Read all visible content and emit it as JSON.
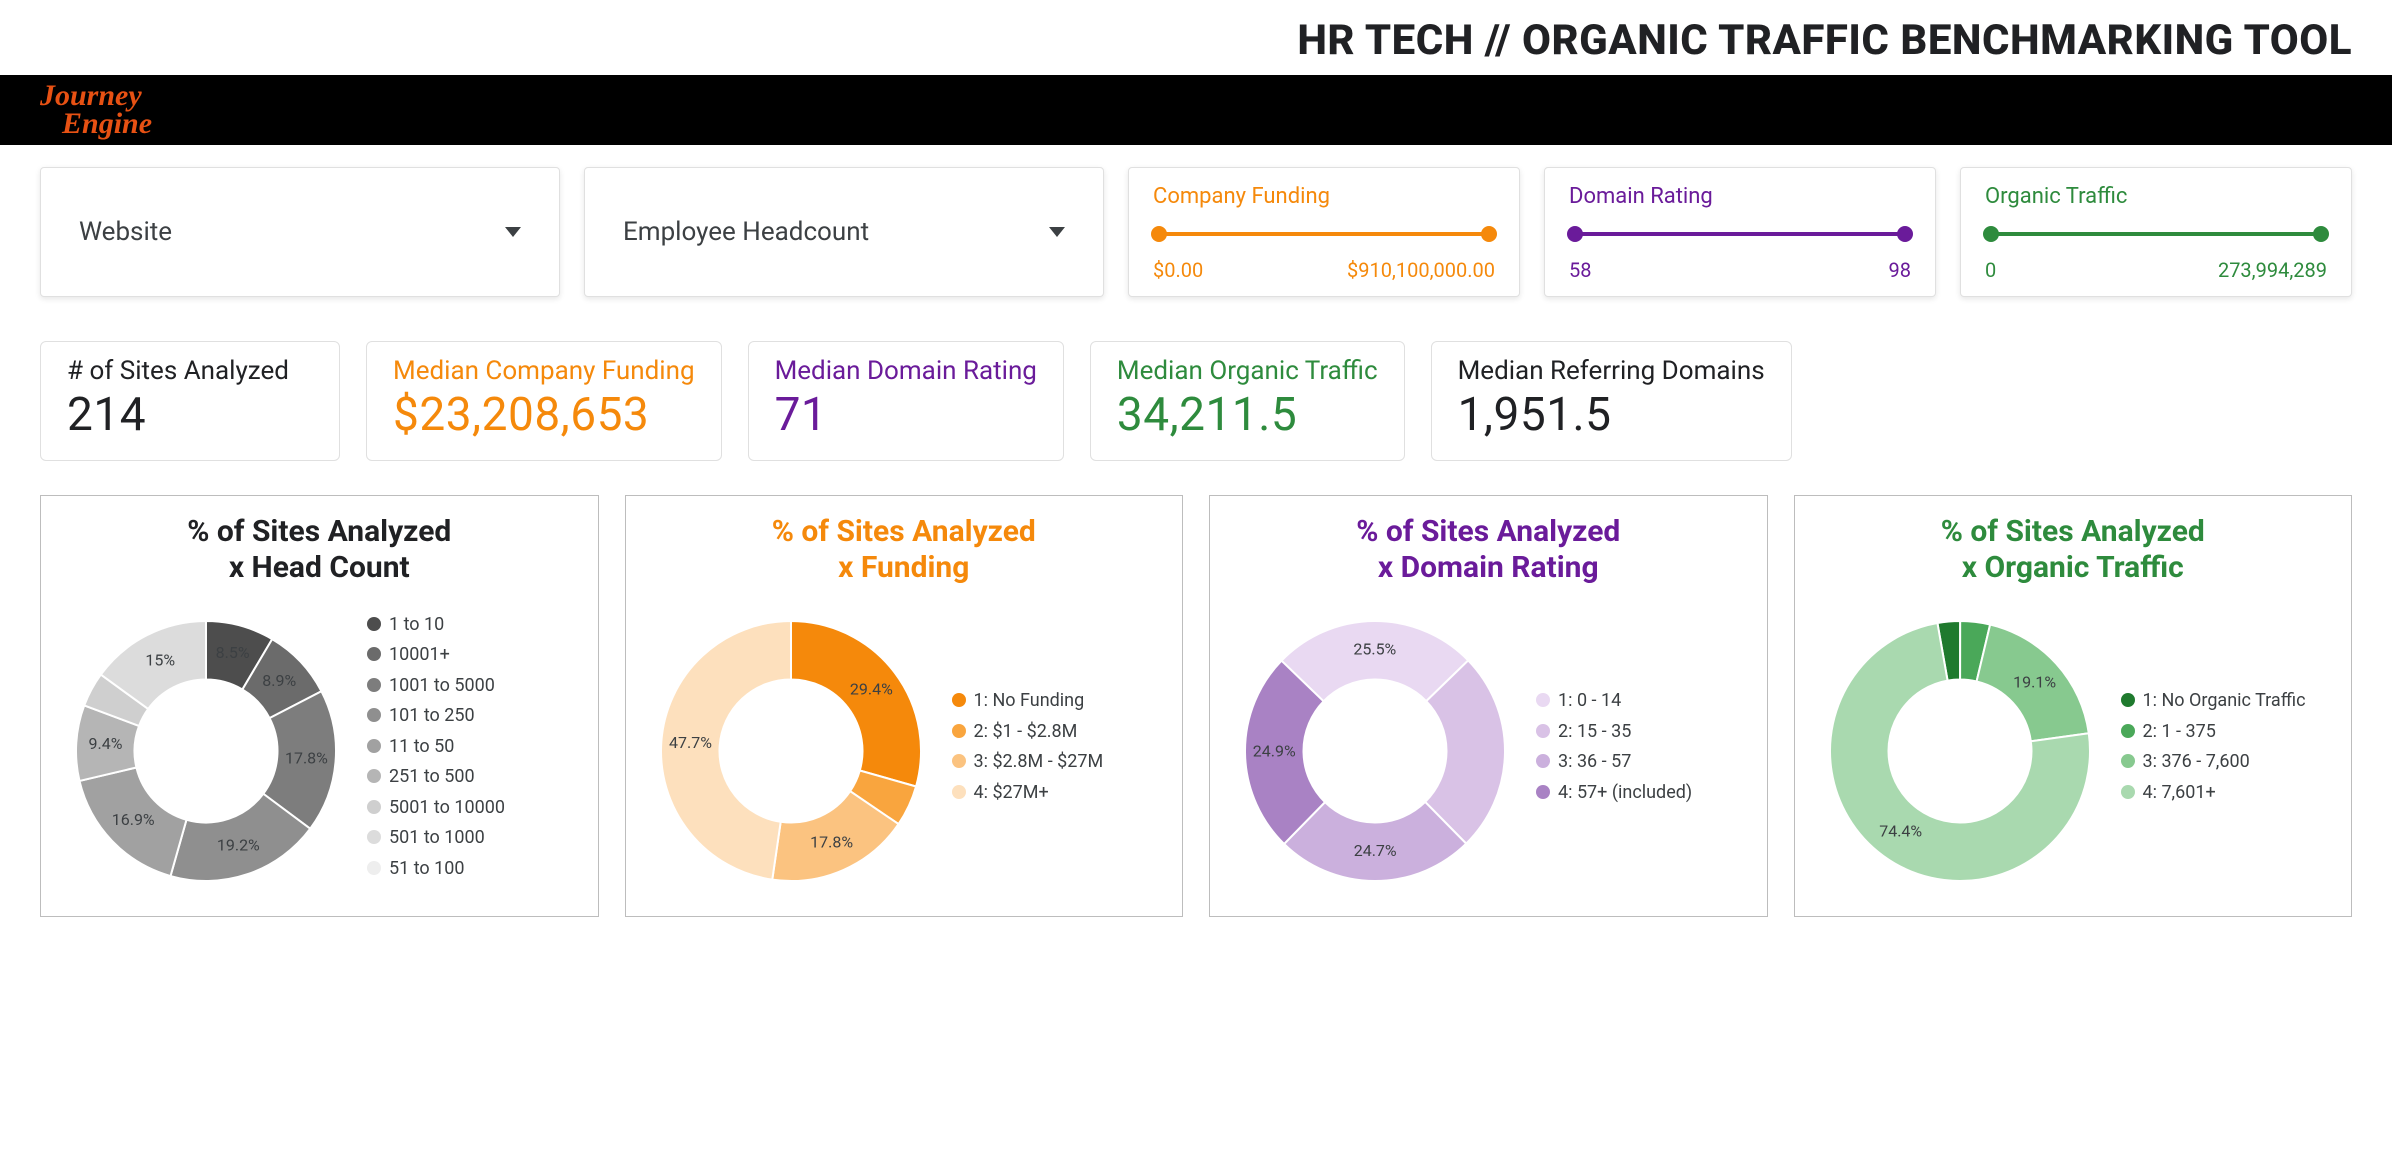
{
  "page_title": "HR TECH // ORGANIC TRAFFIC BENCHMARKING TOOL",
  "brand": {
    "line1": "Journey",
    "line2": "Engine",
    "color": "#e75113"
  },
  "colors": {
    "funding": "#f5890b",
    "domain": "#6a1b9a",
    "traffic": "#2e8b3d",
    "neutral": "#202124",
    "grey_label": "#5f6368"
  },
  "filters": {
    "website_dropdown": {
      "label": "Website"
    },
    "headcount_dropdown": {
      "label": "Employee Headcount"
    },
    "sliders": [
      {
        "key": "funding",
        "title": "Company Funding",
        "color": "#f5890b",
        "min_label": "$0.00",
        "max_label": "$910,100,000.00"
      },
      {
        "key": "domain",
        "title": "Domain Rating",
        "color": "#6a1b9a",
        "min_label": "58",
        "max_label": "98"
      },
      {
        "key": "traffic",
        "title": "Organic Traffic",
        "color": "#2e8b3d",
        "min_label": "0",
        "max_label": "273,994,289"
      }
    ]
  },
  "kpis": [
    {
      "label": "# of Sites Analyzed",
      "value": "214",
      "color": "#202124"
    },
    {
      "label": "Median Company Funding",
      "value": "$23,208,653",
      "color": "#f5890b"
    },
    {
      "label": "Median Domain Rating",
      "value": "71",
      "color": "#6a1b9a"
    },
    {
      "label": "Median Organic Traffic",
      "value": "34,211.5",
      "color": "#2e8b3d"
    },
    {
      "label": "Median Referring Domains",
      "value": "1,951.5",
      "color": "#202124"
    }
  ],
  "charts": [
    {
      "key": "headcount",
      "title_l1": "% of Sites Analyzed",
      "title_l2": "x Head Count",
      "title_color": "#202124",
      "inner_ratio": 0.55,
      "start_angle": 0,
      "slices": [
        {
          "label": "8.5%",
          "value": 8.5,
          "legend": "1 to 10",
          "color": "#4d4d4d"
        },
        {
          "label": "8.9%",
          "value": 8.9,
          "legend": "10001+",
          "color": "#6b6b6b"
        },
        {
          "label": "17.8%",
          "value": 17.8,
          "legend": "1001 to 5000",
          "color": "#7d7d7d"
        },
        {
          "label": "19.2%",
          "value": 19.2,
          "legend": "101 to 250",
          "color": "#8f8f8f"
        },
        {
          "label": "16.9%",
          "value": 16.9,
          "legend": "11 to 50",
          "color": "#a1a1a1"
        },
        {
          "label": "9.4%",
          "value": 9.4,
          "legend": "251 to 500",
          "color": "#b5b5b5"
        },
        {
          "label": "",
          "value": 4.3,
          "legend": "5001 to 10000",
          "color": "#cfcfcf"
        },
        {
          "label": "15%",
          "value": 15.0,
          "legend": "501 to 1000",
          "color": "#dcdcdc"
        },
        {
          "label": "",
          "value": 0.0,
          "legend": "51 to 100",
          "color": "#eeeeee"
        }
      ]
    },
    {
      "key": "funding",
      "title_l1": "% of Sites Analyzed",
      "title_l2": "x Funding",
      "title_color": "#f5890b",
      "inner_ratio": 0.55,
      "start_angle": 0,
      "slices": [
        {
          "label": "29.4%",
          "value": 29.4,
          "legend": "1: No Funding",
          "color": "#f5890b"
        },
        {
          "label": "",
          "value": 5.1,
          "legend": "2: $1 - $2.8M",
          "color": "#f9a53e"
        },
        {
          "label": "17.8%",
          "value": 17.8,
          "legend": "3: $2.8M - $27M",
          "color": "#fbc380"
        },
        {
          "label": "47.7%",
          "value": 47.7,
          "legend": "4: $27M+",
          "color": "#fde0bd"
        }
      ]
    },
    {
      "key": "domain",
      "title_l1": "% of Sites Analyzed",
      "title_l2": "x Domain Rating",
      "title_color": "#6a1b9a",
      "inner_ratio": 0.55,
      "start_angle": -46,
      "slices": [
        {
          "label": "25.5%",
          "value": 25.5,
          "legend": "1: 0 - 14",
          "color": "#e9d9f2",
          "label_color": "#b39ac3"
        },
        {
          "label": "",
          "value": 24.9,
          "legend": "2: 15 - 35",
          "color": "#d9c2e6"
        },
        {
          "label": "24.7%",
          "value": 24.7,
          "legend": "3: 36 - 57",
          "color": "#cbb0dd"
        },
        {
          "label": "24.9%",
          "value": 24.9,
          "legend": "4: 57+ (included)",
          "color": "#a982c4"
        }
      ]
    },
    {
      "key": "traffic",
      "title_l1": "% of Sites Analyzed",
      "title_l2": "x Organic Traffic",
      "title_color": "#2e8b3d",
      "inner_ratio": 0.55,
      "start_angle": -10,
      "slices": [
        {
          "label": "",
          "value": 2.8,
          "legend": "1: No Organic Traffic",
          "color": "#1f7a2e"
        },
        {
          "label": "",
          "value": 3.7,
          "legend": "2: 1 - 375",
          "color": "#4aa859"
        },
        {
          "label": "19.1%",
          "value": 19.1,
          "legend": "3: 376 - 7,600",
          "color": "#87c98f"
        },
        {
          "label": "74.4%",
          "value": 74.4,
          "legend": "4: 7,601+",
          "color": "#a9d9af"
        }
      ]
    }
  ]
}
